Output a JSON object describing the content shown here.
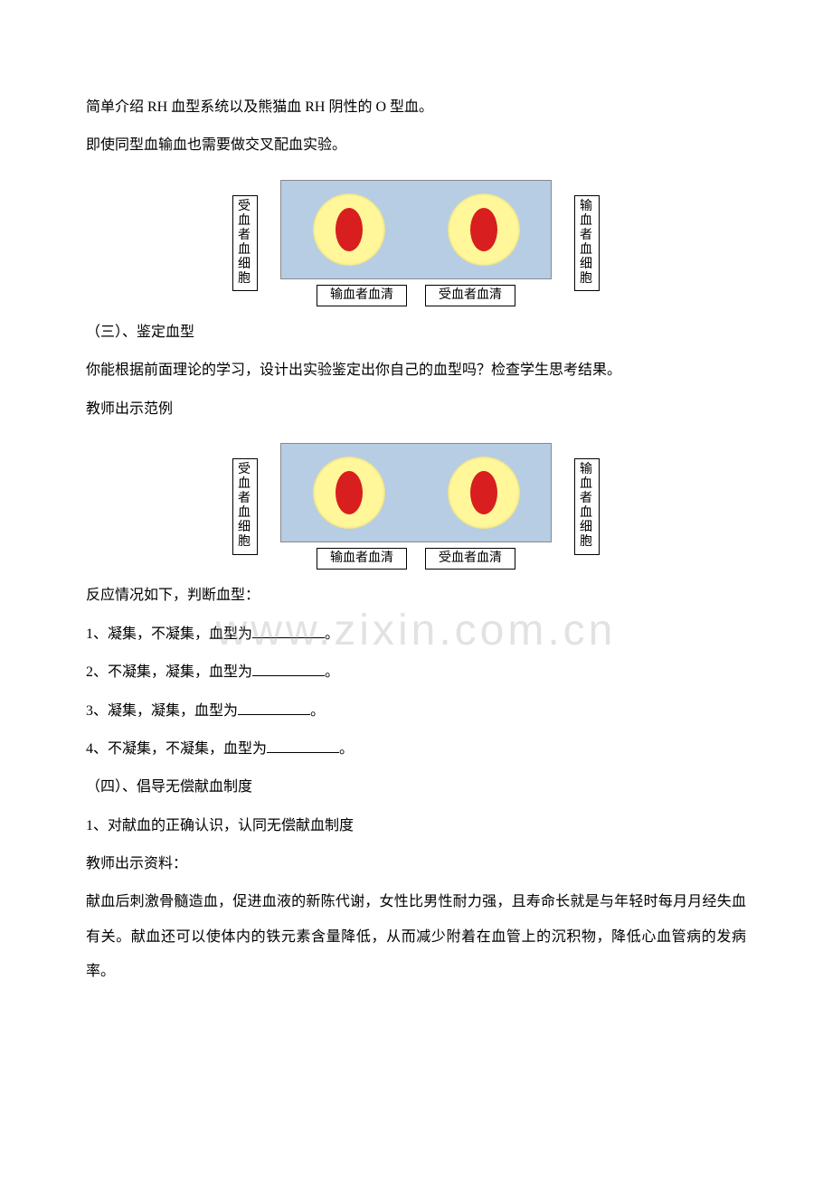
{
  "p1": "简单介绍 RH 血型系统以及熊猫血 RH 阴性的 O 型血。",
  "p2": "即使同型血输血也需要做交叉配血实验。",
  "diagram": {
    "leftLabel": "受血者血细胞",
    "rightLabel": "输血者血细胞",
    "bottomLeft": "输血者血清",
    "bottomRight": "受血者血清",
    "plateBg": "#b7cde4",
    "wellBg": "#fff799",
    "bloodColor": "#d81e1e"
  },
  "s3title": "（三）、鉴定血型",
  "p3": "你能根据前面理论的学习，设计出实验鉴定出你自己的血型吗？检查学生思考结果。",
  "p4": "教师出示范例",
  "p5": "反应情况如下，判断血型：",
  "q1a": "1、凝集，不凝集，血型为",
  "q2a": "2、不凝集，凝集，血型为",
  "q3a": "3、凝集，凝集，血型为",
  "q4a": "4、不凝集，不凝集，血型为",
  "period": "。",
  "s4title": "（四）、倡导无偿献血制度",
  "p6": "1、对献血的正确认识，认同无偿献血制度",
  "p7": "教师出示资料：",
  "p8": "献血后刺激骨髓造血，促进血液的新陈代谢，女性比男性耐力强，且寿命长就是与年轻时每月月经失血有关。献血还可以使体内的铁元素含量降低，从而减少附着在血管上的沉积物，降低心血管病的发病率。",
  "watermark": "www.zixin.com.cn"
}
